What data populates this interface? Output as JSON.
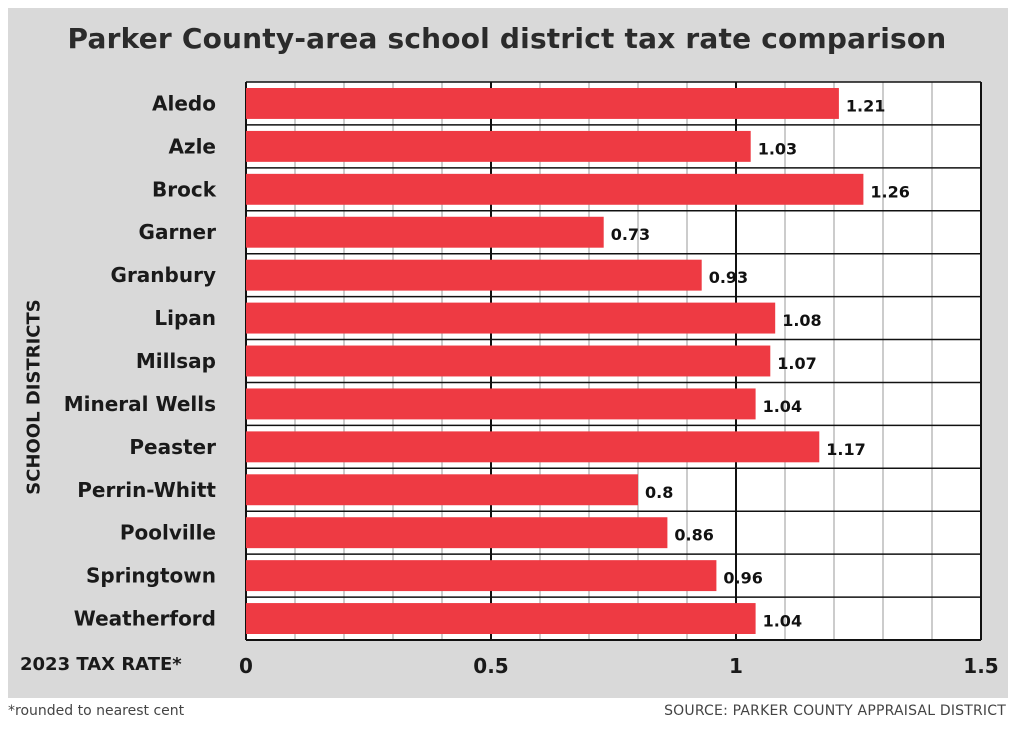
{
  "title": "Parker County-area school district tax rate comparison",
  "y_axis_label": "SCHOOL DISTRICTS",
  "x_axis_label": "2023 TAX RATE*",
  "footnote": "*rounded to nearest cent",
  "source": "SOURCE: PARKER COUNTY APPRAISAL DISTRICT",
  "colors": {
    "bar": "#ee3a43",
    "panel": "#d9d9d9",
    "plot": "#ffffff",
    "text": "#1a1a1a"
  },
  "chart_data": {
    "type": "bar",
    "orientation": "horizontal",
    "title": "Parker County-area school district tax rate comparison",
    "xlabel": "2023 TAX RATE*",
    "ylabel": "SCHOOL DISTRICTS",
    "categories": [
      "Aledo",
      "Azle",
      "Brock",
      "Garner",
      "Granbury",
      "Lipan",
      "Millsap",
      "Mineral Wells",
      "Peaster",
      "Perrin-Whitt",
      "Poolville",
      "Springtown",
      "Weatherford"
    ],
    "values": [
      1.21,
      1.03,
      1.26,
      0.73,
      0.93,
      1.08,
      1.07,
      1.04,
      1.17,
      0.8,
      0.86,
      0.96,
      1.04
    ],
    "value_labels": [
      "1.21",
      "1.03",
      "1.26",
      "0.73",
      "0.93",
      "1.08",
      "1.07",
      "1.04",
      "1.17",
      "0.8",
      "0.86",
      "0.96",
      "1.04"
    ],
    "xlim": [
      0,
      1.5
    ],
    "x_ticks": [
      0,
      0.5,
      1,
      1.5
    ],
    "x_tick_labels": [
      "0",
      "0.5",
      "1",
      "1.5"
    ],
    "minor_tick_step": 0.1,
    "grid": true,
    "legend": "none"
  }
}
